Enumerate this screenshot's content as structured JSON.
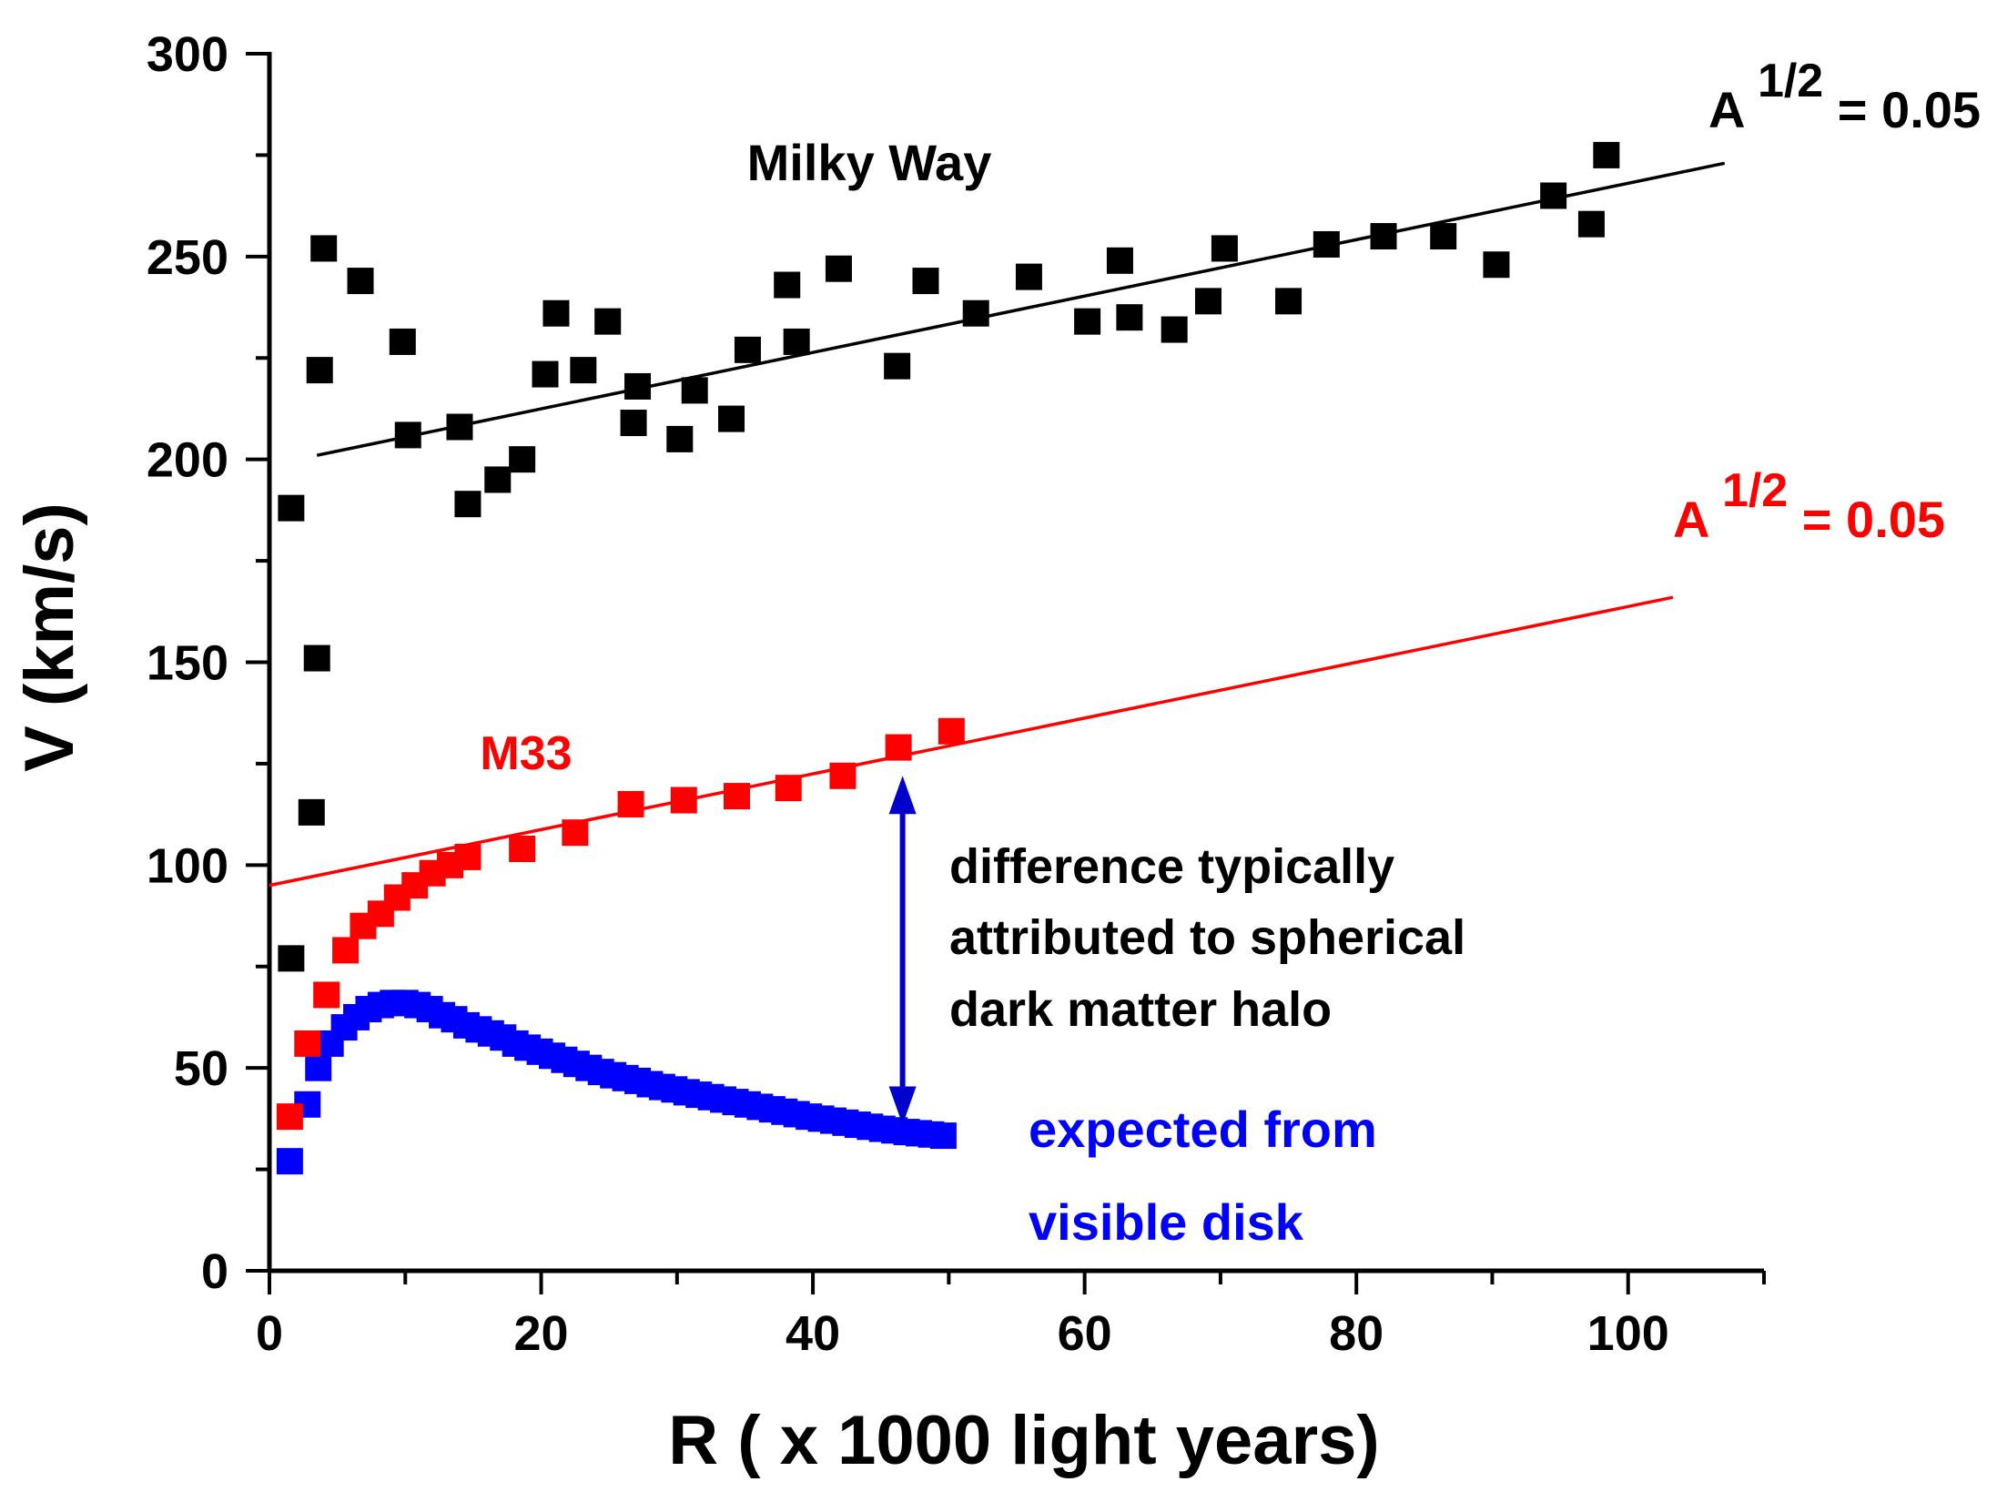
{
  "chart_data": {
    "type": "scatter",
    "xlabel": "R ( x 1000 light years)",
    "ylabel": "V (km/s)",
    "xlim": [
      0,
      110
    ],
    "ylim": [
      0,
      300
    ],
    "x_ticks": [
      0,
      20,
      40,
      60,
      80,
      100
    ],
    "y_ticks": [
      0,
      50,
      100,
      150,
      200,
      250,
      300
    ],
    "x_tick_labels": [
      "0",
      "20",
      "40",
      "60",
      "80",
      "100"
    ],
    "y_tick_labels": [
      "0",
      "50",
      "100",
      "150",
      "200",
      "250",
      "300"
    ],
    "grid": false,
    "colors": {
      "milky_way": "#000000",
      "m33": "#ff0000",
      "visible_disk": "#0000ff",
      "arrow": "#0000cc"
    },
    "series": [
      {
        "name": "Milky Way",
        "label": "Milky Way",
        "marker": "square",
        "points": [
          [
            1.6,
            188
          ],
          [
            1.6,
            77
          ],
          [
            3.1,
            113
          ],
          [
            3.5,
            151
          ],
          [
            3.7,
            222
          ],
          [
            4.0,
            252
          ],
          [
            6.7,
            244
          ],
          [
            9.8,
            229
          ],
          [
            10.2,
            206
          ],
          [
            14.0,
            208
          ],
          [
            14.6,
            189
          ],
          [
            16.8,
            195
          ],
          [
            18.6,
            200
          ],
          [
            20.3,
            221
          ],
          [
            21.1,
            236
          ],
          [
            23.1,
            222
          ],
          [
            24.9,
            234
          ],
          [
            26.8,
            209
          ],
          [
            27.1,
            218
          ],
          [
            30.2,
            205
          ],
          [
            31.3,
            217
          ],
          [
            34.0,
            210
          ],
          [
            35.2,
            227
          ],
          [
            38.1,
            243
          ],
          [
            38.8,
            229
          ],
          [
            41.9,
            247
          ],
          [
            46.2,
            223
          ],
          [
            48.3,
            244
          ],
          [
            52.0,
            236
          ],
          [
            55.9,
            245
          ],
          [
            60.2,
            234
          ],
          [
            62.6,
            249
          ],
          [
            63.3,
            235
          ],
          [
            66.6,
            232
          ],
          [
            69.1,
            239
          ],
          [
            70.3,
            252
          ],
          [
            75.0,
            239
          ],
          [
            77.8,
            253
          ],
          [
            82.0,
            255
          ],
          [
            86.4,
            255
          ],
          [
            90.3,
            248
          ],
          [
            94.5,
            265
          ],
          [
            97.3,
            258
          ],
          [
            98.4,
            275
          ]
        ],
        "fit": {
          "label_base": "A",
          "label_exp": "1/2",
          "label_val": "= 0.05",
          "from": [
            3.5,
            201
          ],
          "to": [
            107.1,
            273
          ]
        }
      },
      {
        "name": "M33",
        "label": "M33",
        "marker": "square",
        "points": [
          [
            1.5,
            38
          ],
          [
            2.8,
            56
          ],
          [
            4.2,
            68
          ],
          [
            5.6,
            79
          ],
          [
            6.9,
            85
          ],
          [
            8.2,
            88
          ],
          [
            9.4,
            92
          ],
          [
            10.7,
            95
          ],
          [
            12.0,
            98
          ],
          [
            13.3,
            100
          ],
          [
            14.6,
            102
          ],
          [
            18.6,
            104
          ],
          [
            22.5,
            108
          ],
          [
            26.6,
            115
          ],
          [
            30.5,
            116
          ],
          [
            34.4,
            117
          ],
          [
            38.2,
            119
          ],
          [
            42.2,
            122
          ],
          [
            46.3,
            129
          ],
          [
            50.2,
            133
          ]
        ],
        "fit": {
          "label_base": "A",
          "label_exp": "1/2",
          "label_val": "= 0.05",
          "from": [
            0,
            95
          ],
          "to": [
            103.3,
            166
          ]
        }
      },
      {
        "name": "expected from visible disk",
        "label_lines": [
          "expected from",
          "visible disk"
        ],
        "marker": "square",
        "points": [
          [
            1.5,
            27
          ],
          [
            2.8,
            41
          ],
          [
            3.6,
            50
          ],
          [
            4.5,
            56
          ],
          [
            5.5,
            60
          ],
          [
            6.4,
            62.5
          ],
          [
            7.3,
            64.5
          ],
          [
            8.2,
            65.5
          ],
          [
            9.1,
            66
          ],
          [
            10.0,
            66
          ],
          [
            10.9,
            65.5
          ],
          [
            11.8,
            64.5
          ],
          [
            12.7,
            63
          ],
          [
            13.6,
            62
          ],
          [
            14.5,
            60.5
          ],
          [
            15.4,
            59.5
          ],
          [
            16.3,
            58.5
          ],
          [
            17.2,
            57.5
          ],
          [
            18.1,
            56
          ],
          [
            19.0,
            55
          ],
          [
            19.9,
            54
          ],
          [
            20.8,
            53
          ],
          [
            21.7,
            52
          ],
          [
            22.6,
            51
          ],
          [
            23.5,
            50
          ],
          [
            24.4,
            49
          ],
          [
            25.3,
            48.2
          ],
          [
            26.2,
            47.5
          ],
          [
            27.1,
            46.8
          ],
          [
            28.0,
            46
          ],
          [
            28.9,
            45.3
          ],
          [
            29.8,
            44.7
          ],
          [
            30.7,
            44
          ],
          [
            31.6,
            43.4
          ],
          [
            32.5,
            42.8
          ],
          [
            33.4,
            42.2
          ],
          [
            34.3,
            41.6
          ],
          [
            35.2,
            41
          ],
          [
            36.1,
            40.4
          ],
          [
            37.0,
            39.8
          ],
          [
            37.9,
            39.2
          ],
          [
            38.8,
            38.6
          ],
          [
            39.7,
            38
          ],
          [
            40.6,
            37.5
          ],
          [
            41.5,
            37
          ],
          [
            42.4,
            36.5
          ],
          [
            43.3,
            36
          ],
          [
            44.2,
            35.5
          ],
          [
            45.1,
            35
          ],
          [
            46.0,
            34.6
          ],
          [
            46.9,
            34.2
          ],
          [
            47.8,
            33.9
          ],
          [
            48.7,
            33.6
          ],
          [
            49.6,
            33.3
          ]
        ]
      }
    ],
    "annotation": {
      "lines": [
        "difference typically",
        "attributed to spherical",
        "dark matter halo"
      ],
      "arrow_x": 46.6,
      "arrow_y_top": 122,
      "arrow_y_bottom": 36
    }
  }
}
